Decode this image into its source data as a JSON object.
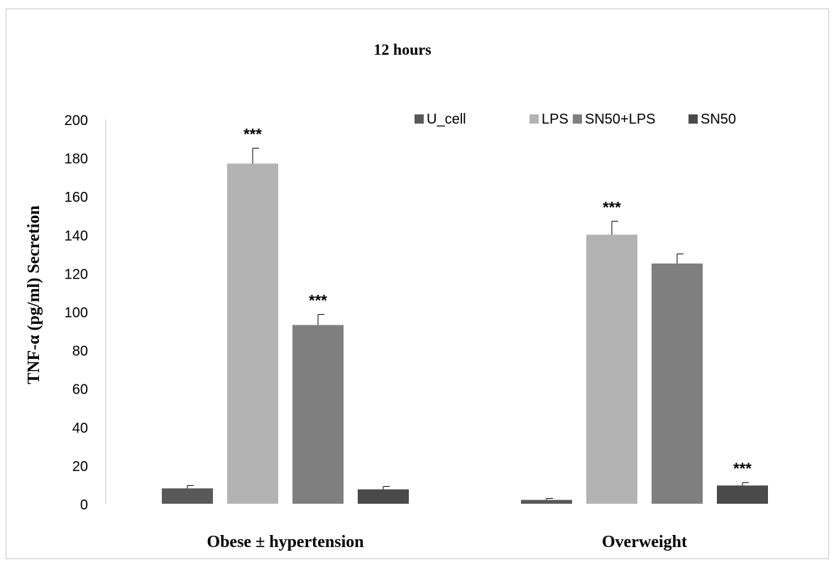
{
  "chart_data": {
    "type": "bar",
    "title": "12 hours",
    "ylabel": "TNF-α (pg/ml) Secretion",
    "xlabel": "",
    "ylim": [
      0,
      200
    ],
    "yticks": [
      "0",
      "20",
      "40",
      "60",
      "80",
      "100",
      "120",
      "140",
      "160",
      "180",
      "200"
    ],
    "ytick_values": [
      0,
      20,
      40,
      60,
      80,
      100,
      120,
      140,
      160,
      180,
      200
    ],
    "categories": [
      "Obese ± hypertension",
      "Overweight"
    ],
    "legend_position": "top-right",
    "grid": false,
    "series": [
      {
        "name": "U_cell",
        "color": "#595959",
        "values": [
          8,
          2
        ],
        "errors": [
          1.5,
          0.8
        ],
        "significance": [
          "",
          ""
        ]
      },
      {
        "name": "LPS",
        "color": "#b3b3b3",
        "values": [
          177,
          140
        ],
        "errors": [
          8,
          7
        ],
        "significance": [
          "***",
          "***"
        ]
      },
      {
        "name": "SN50+LPS",
        "color": "#7f7f7f",
        "values": [
          93,
          125
        ],
        "errors": [
          5.5,
          5
        ],
        "significance": [
          "***",
          ""
        ]
      },
      {
        "name": "SN50",
        "color": "#4a4a4a",
        "values": [
          7.5,
          9.5
        ],
        "errors": [
          1.5,
          1.5
        ],
        "significance": [
          "",
          "***"
        ]
      }
    ]
  }
}
